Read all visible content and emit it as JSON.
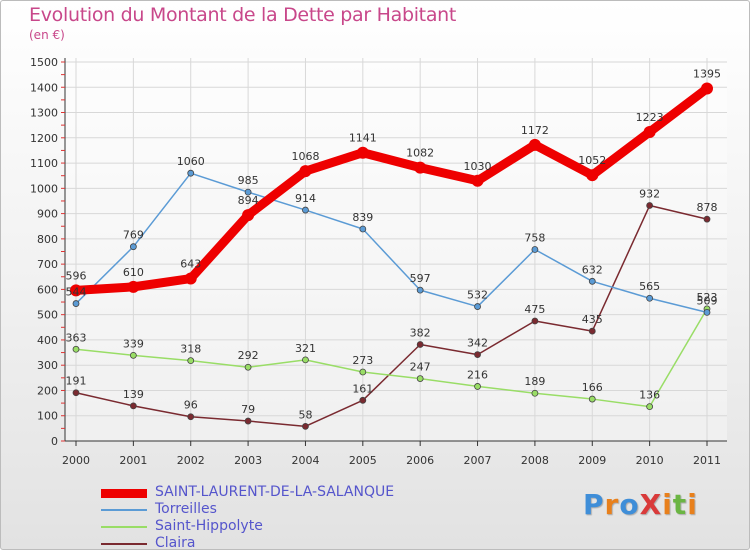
{
  "header": {
    "title": "Evolution du Montant de la Dette par Habitant",
    "subtitle": "(en €)"
  },
  "brand": {
    "logo_text": "ProXiti"
  },
  "chart_data": {
    "type": "line",
    "title": "Evolution du Montant de la Dette par Habitant",
    "ylabel": "(en €)",
    "x": [
      "2000",
      "2001",
      "2002",
      "2003",
      "2004",
      "2005",
      "2006",
      "2007",
      "2008",
      "2009",
      "2010",
      "2011"
    ],
    "ylim": [
      0,
      1500
    ],
    "yticks": [
      0,
      100,
      200,
      300,
      400,
      500,
      600,
      700,
      800,
      900,
      1000,
      1100,
      1200,
      1300,
      1400,
      1500
    ],
    "grid": true,
    "legend_position": "bottom",
    "series": [
      {
        "name": "SAINT-LAURENT-DE-LA-SALANQUE",
        "color": "#ee0000",
        "values": [
          596,
          610,
          643,
          894,
          1068,
          1141,
          1082,
          1030,
          1172,
          1052,
          1223,
          1395
        ]
      },
      {
        "name": "Torreilles",
        "color": "#5b9bd5",
        "values": [
          544,
          769,
          1060,
          985,
          914,
          839,
          597,
          532,
          758,
          632,
          565,
          509
        ]
      },
      {
        "name": "Saint-Hippolyte",
        "color": "#99dd66",
        "values": [
          363,
          339,
          318,
          292,
          321,
          273,
          247,
          216,
          189,
          166,
          136,
          523
        ]
      },
      {
        "name": "Claira",
        "color": "#7a2a30",
        "values": [
          191,
          139,
          96,
          79,
          58,
          161,
          382,
          342,
          475,
          435,
          932,
          878
        ]
      }
    ],
    "data_labels": [
      [
        "596",
        "610",
        "643",
        "894",
        "1068",
        "1141",
        "1082",
        "1030",
        "1172",
        "1052",
        "1223",
        "1395"
      ],
      [
        "544",
        "769",
        "1060",
        "985",
        "914",
        "839",
        "597",
        "532",
        "758",
        "632",
        "565",
        "509"
      ],
      [
        "363",
        "339",
        "318",
        "292",
        "321",
        "273",
        "247",
        "216",
        "189",
        "166",
        "136",
        "523"
      ],
      [
        "191",
        "139",
        "96",
        "79",
        "58",
        "161",
        "382",
        "342",
        "475",
        "435",
        "932",
        "878"
      ]
    ]
  }
}
